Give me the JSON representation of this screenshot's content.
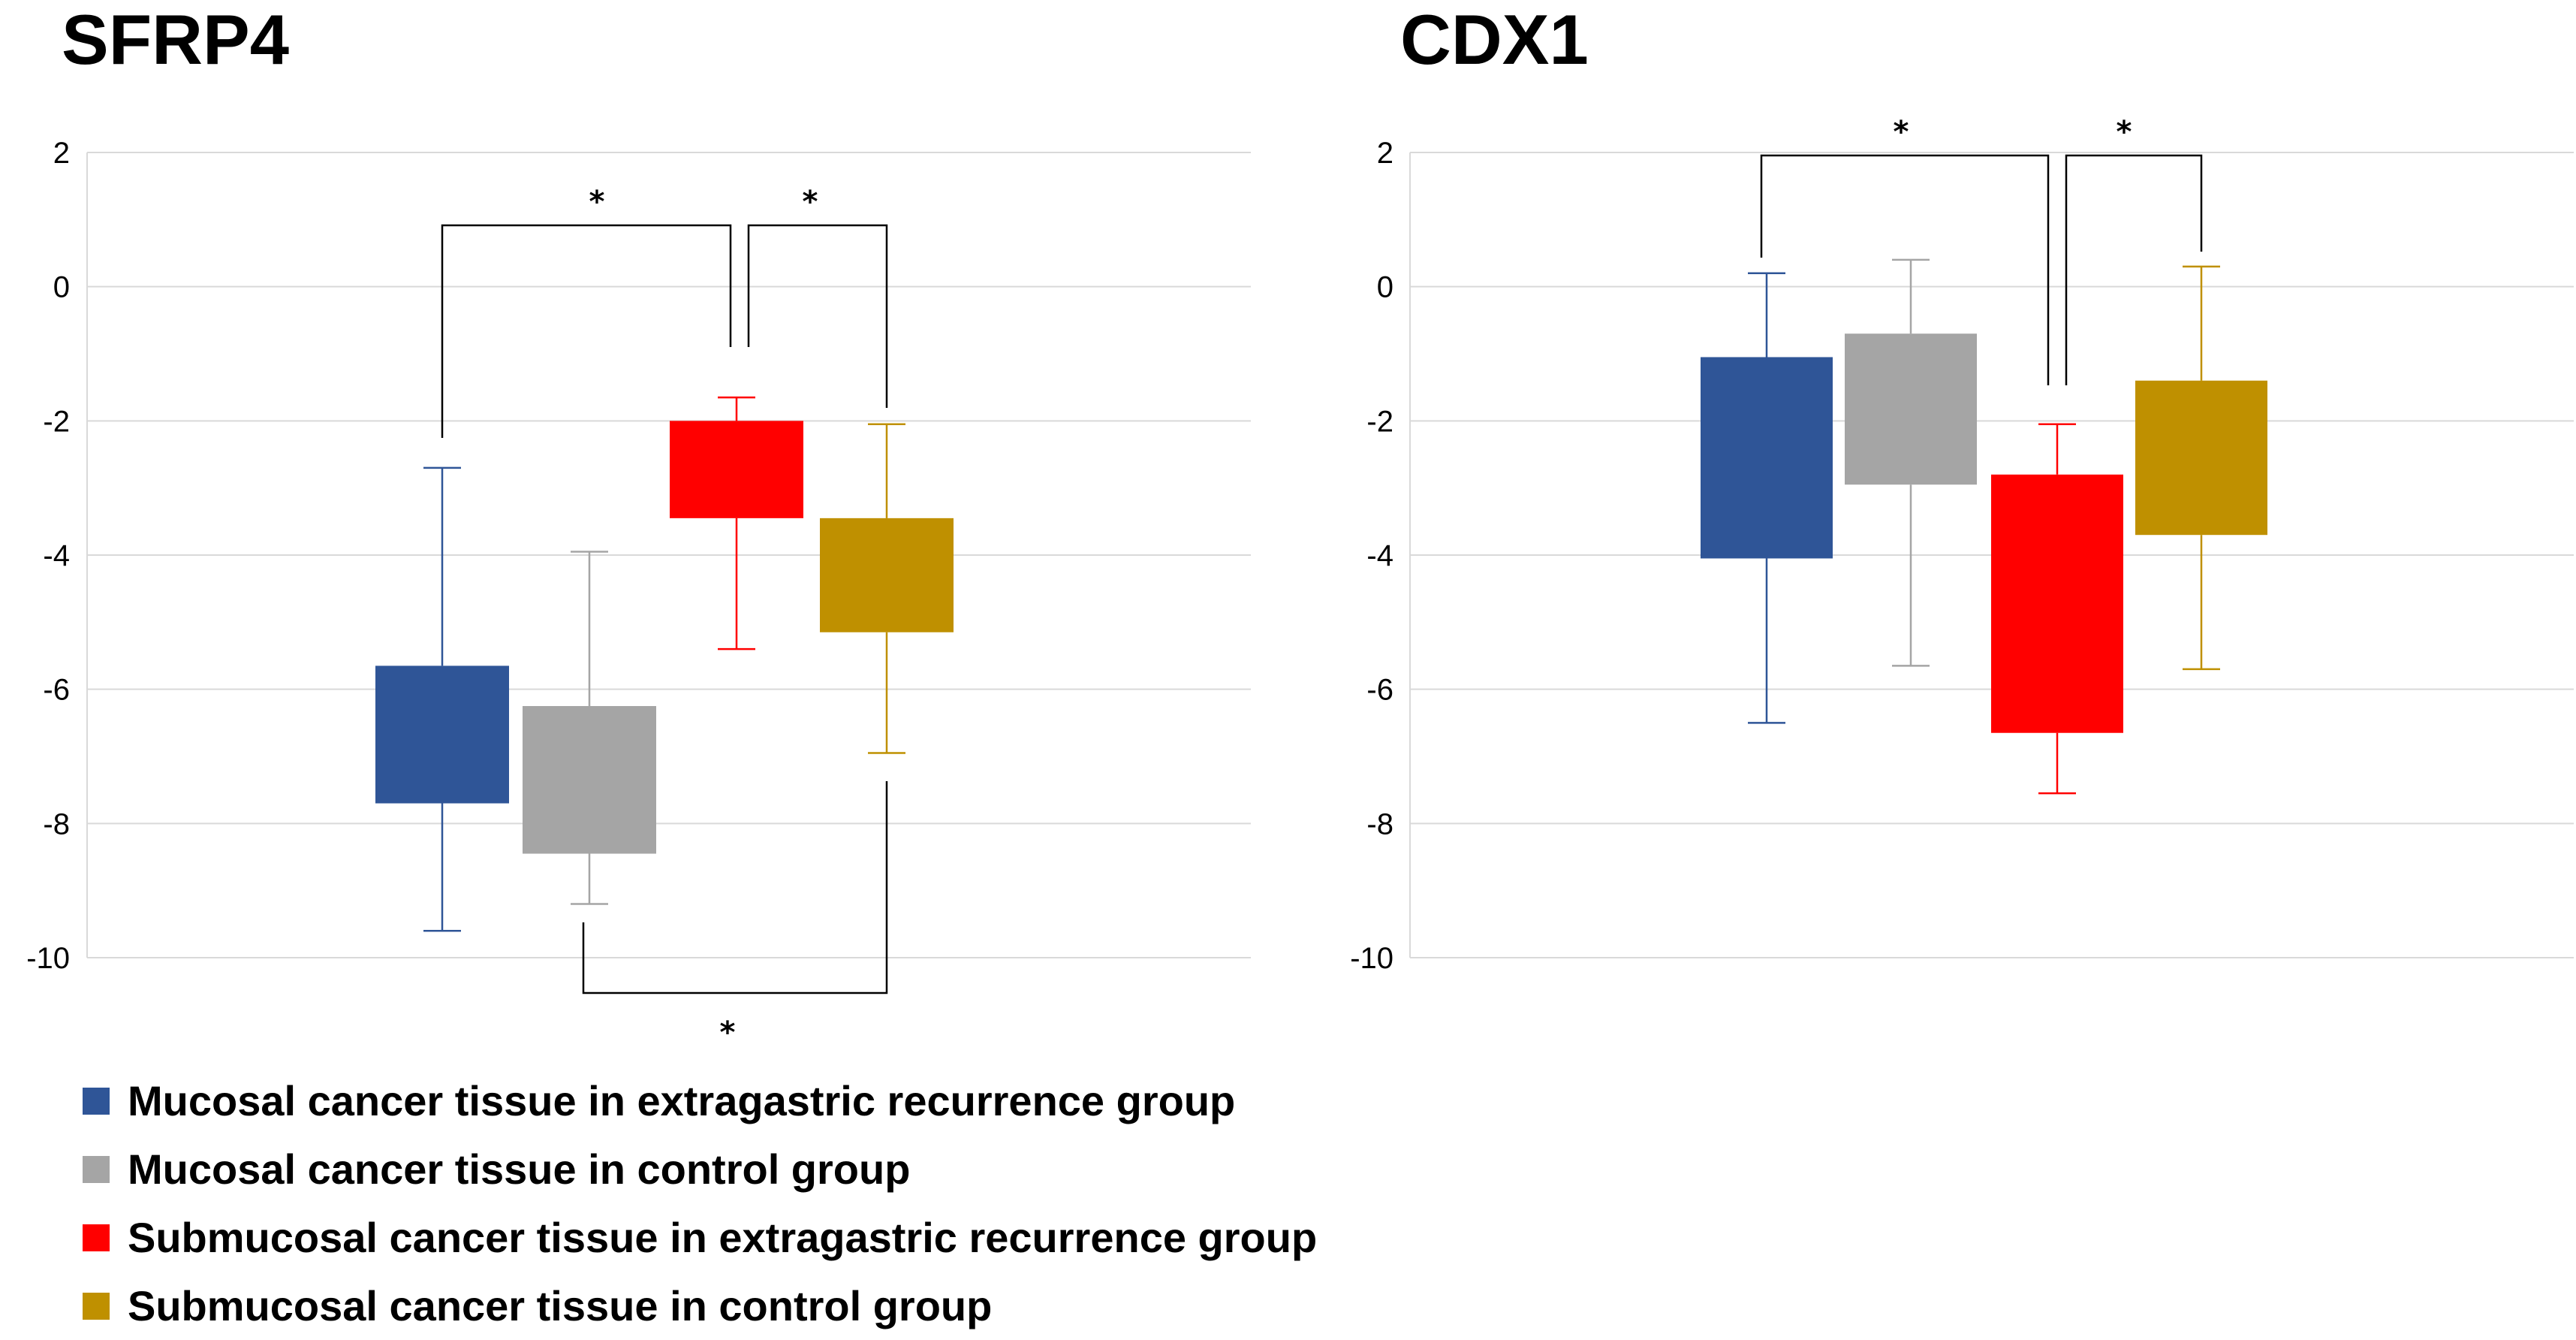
{
  "chart_data": [
    {
      "type": "boxplot",
      "title": "SFRP4",
      "xlabel": "",
      "ylabel": "",
      "ylim": [
        -10,
        2
      ],
      "yticks": [
        2,
        0,
        -2,
        -4,
        -6,
        -8,
        -10
      ],
      "grid": true,
      "series": [
        {
          "name": "Mucosal cancer tissue in extragastric recurrence group",
          "color": "#2F5597",
          "whisker_low": -9.6,
          "q1": -7.7,
          "q3": -5.65,
          "whisker_high": -2.7
        },
        {
          "name": "Mucosal cancer tissue in control group",
          "color": "#A5A5A5",
          "whisker_low": -9.2,
          "q1": -8.45,
          "q3": -6.25,
          "whisker_high": -3.95
        },
        {
          "name": "Submucosal cancer tissue in extragastric recurrence group",
          "color": "#FF0000",
          "whisker_low": -5.4,
          "q1": -3.45,
          "q3": -2.0,
          "whisker_high": -1.65
        },
        {
          "name": "Submucosal cancer tissue in control group",
          "color": "#BF9000",
          "whisker_low": -6.95,
          "q1": -5.15,
          "q3": -3.45,
          "whisker_high": -2.05
        }
      ],
      "significance": [
        {
          "from": 0,
          "to": 2,
          "label": "*",
          "side": "top"
        },
        {
          "from": 2,
          "to": 3,
          "label": "*",
          "side": "top"
        },
        {
          "from": 1,
          "to": 3,
          "label": "*",
          "side": "bottom"
        }
      ]
    },
    {
      "type": "boxplot",
      "title": "CDX1",
      "xlabel": "",
      "ylabel": "",
      "ylim": [
        -10,
        2
      ],
      "yticks": [
        2,
        0,
        -2,
        -4,
        -6,
        -8,
        -10
      ],
      "grid": true,
      "series": [
        {
          "name": "Mucosal cancer tissue in extragastric recurrence group",
          "color": "#2F5597",
          "whisker_low": -6.5,
          "q1": -4.05,
          "q3": -1.05,
          "whisker_high": 0.2
        },
        {
          "name": "Mucosal cancer tissue in control group",
          "color": "#A5A5A5",
          "whisker_low": -5.65,
          "q1": -2.95,
          "q3": -0.7,
          "whisker_high": 0.4
        },
        {
          "name": "Submucosal cancer tissue in extragastric recurrence group",
          "color": "#FF0000",
          "whisker_low": -7.55,
          "q1": -6.65,
          "q3": -2.8,
          "whisker_high": -2.05
        },
        {
          "name": "Submucosal cancer tissue in control group",
          "color": "#BF9000",
          "whisker_low": -5.7,
          "q1": -3.7,
          "q3": -1.4,
          "whisker_high": 0.3
        }
      ],
      "significance": [
        {
          "from": 0,
          "to": 2,
          "label": "*",
          "side": "top"
        },
        {
          "from": 2,
          "to": 3,
          "label": "*",
          "side": "top"
        }
      ]
    }
  ],
  "legend": [
    {
      "label": "Mucosal cancer tissue in extragastric recurrence group",
      "color": "#2F5597"
    },
    {
      "label": "Mucosal cancer tissue in control group",
      "color": "#A5A5A5"
    },
    {
      "label": "Submucosal cancer tissue in extragastric recurrence group",
      "color": "#FF0000"
    },
    {
      "label": "Submucosal cancer tissue in control group",
      "color": "#BF9000"
    }
  ]
}
